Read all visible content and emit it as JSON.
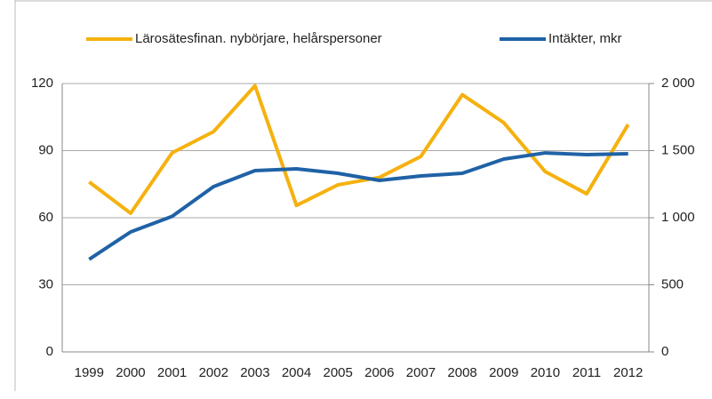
{
  "chart_data": {
    "type": "line",
    "categories": [
      "1999",
      "2000",
      "2001",
      "2002",
      "2003",
      "2004",
      "2005",
      "2006",
      "2007",
      "2008",
      "2009",
      "2010",
      "2011",
      "2012"
    ],
    "series": [
      {
        "name": "Lärosätesfinan. nybörjare, helårspersoner",
        "color": "#f5b10f",
        "values": [
          76,
          62,
          89,
          98.5,
          119,
          65.5,
          74.7,
          78,
          87.4,
          115,
          102.5,
          80.6,
          70.7,
          101.7
        ]
      },
      {
        "name": "Intäkter, mkr",
        "color": "#1f62a6",
        "axis": "y2",
        "values": [
          690,
          894,
          1010,
          1232,
          1351,
          1364,
          1331,
          1278,
          1311,
          1331,
          1437,
          1483,
          1470,
          1477
        ]
      }
    ],
    "ylim": [
      0,
      120
    ],
    "yticks": [
      0,
      30,
      60,
      90,
      120
    ],
    "y2lim": [
      0,
      2000
    ],
    "y2ticks": [
      0,
      500,
      {
        "value": 1000,
        "label": "1 000"
      },
      {
        "value": 1500,
        "label": "1 500"
      },
      {
        "value": 2000,
        "label": "2 000"
      }
    ],
    "grid": true,
    "legend": "top"
  }
}
